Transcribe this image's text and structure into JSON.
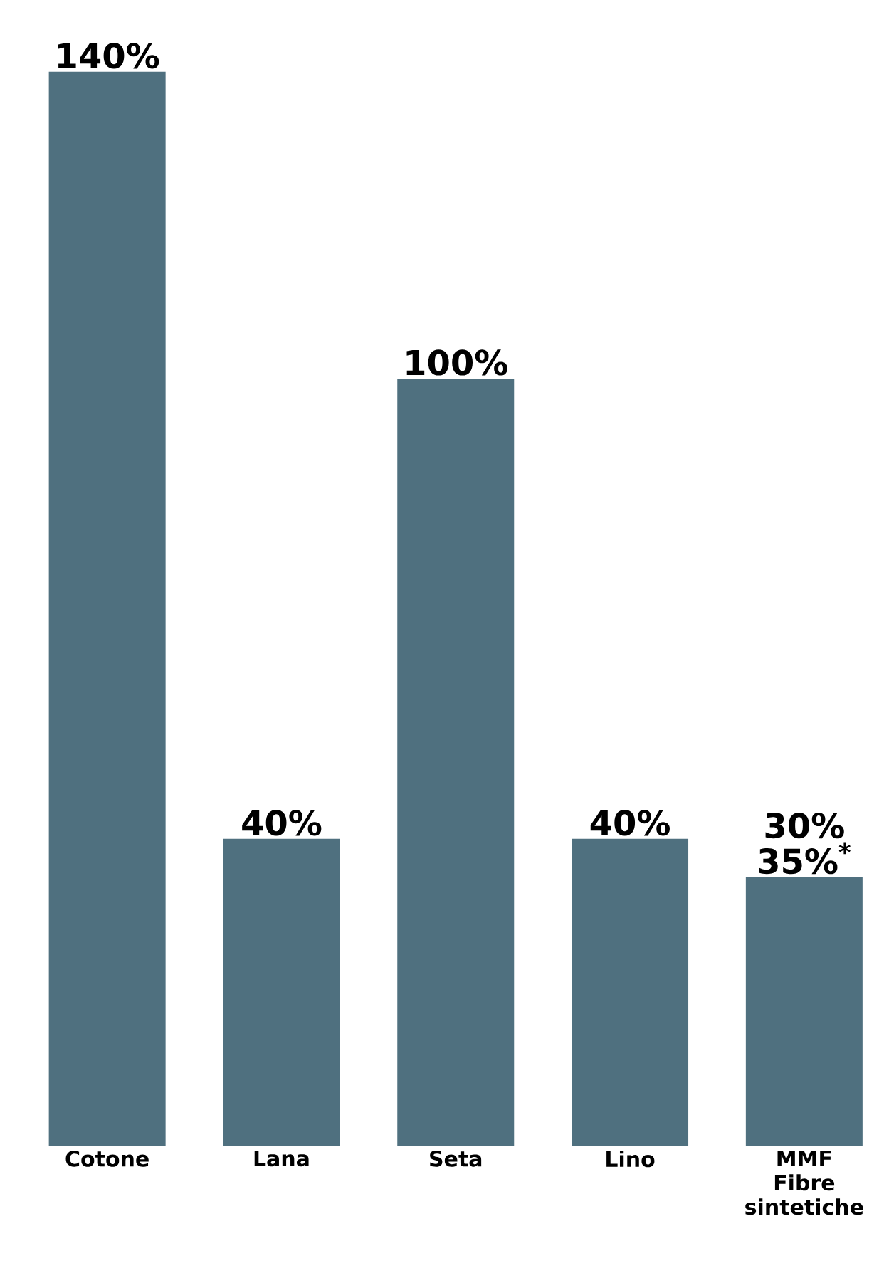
{
  "chart_data": {
    "type": "bar",
    "categories": [
      "Cotone",
      "Lana",
      "Seta",
      "Lino",
      "MMF Fibre sintetiche"
    ],
    "values": [
      140,
      40,
      100,
      40,
      35
    ],
    "color": "#4f707f",
    "value_labels": [
      "140%",
      "40%",
      "100%",
      "40%",
      "30% 35%$^{*}$"
    ]
  }
}
